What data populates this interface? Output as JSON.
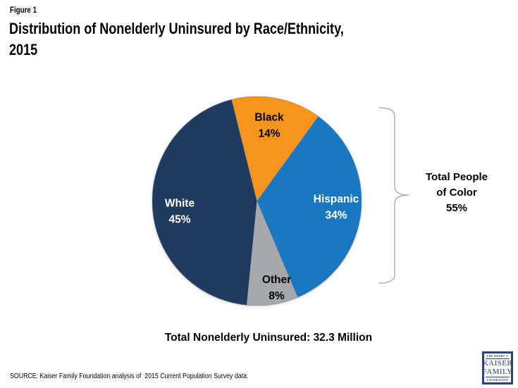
{
  "page": {
    "figure_label": "Figure 1",
    "title": "Distribution of Nonelderly Uninsured by Race/Ethnicity,\n2015"
  },
  "chart_data": {
    "type": "pie",
    "title": "Distribution of Nonelderly Uninsured by Race/Ethnicity, 2015",
    "start_angle_deg": -14,
    "direction": "clockwise",
    "slices": [
      {
        "label": "Black",
        "value": 14,
        "value_label": "14%",
        "color": "#F7941D",
        "label_color": "#000000"
      },
      {
        "label": "Hispanic",
        "value": 34,
        "value_label": "34%",
        "color": "#1A78C2",
        "label_color": "#FFFFFF"
      },
      {
        "label": "Other",
        "value": 8,
        "value_label": "8%",
        "color": "#A7A8AC",
        "label_color": "#000000"
      },
      {
        "label": "White",
        "value": 45,
        "value_label": "45%",
        "color": "#1F3B60",
        "label_color": "#FFFFFF"
      }
    ],
    "annotation": {
      "text": "Total People\nof Color\n55%",
      "value_pct": 55,
      "bracket_color": "#ACACAC"
    },
    "total_note": "Total Nonelderly Uninsured: 32.3 Million",
    "outline_color": "#60708A"
  },
  "footer": {
    "source": "SOURCE: Kaiser Family Foundation analysis of  2015 Current Population Survey data."
  },
  "logo": {
    "top": "THE HENRY J.",
    "name1": "KAISER",
    "name2": "FAMILY",
    "bottom": "FOUNDATION",
    "navy": "#2A4379"
  }
}
